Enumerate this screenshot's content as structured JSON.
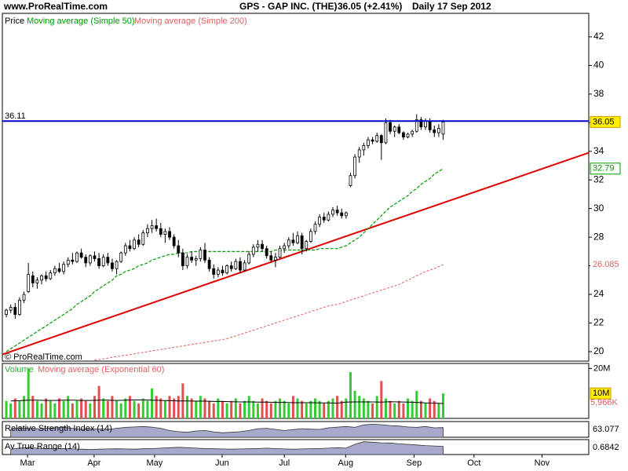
{
  "chart_data": {
    "type": "candlestick",
    "site": "www.ProRealTime.com",
    "symbol": "GPS - GAP INC. (THE)",
    "quote": "36.05 (+2.41%)",
    "period": "Daily 17 Sep 2012",
    "copyright": "© ProRealTime.com",
    "price_label": "Price",
    "xlim": [
      -0.9,
      132
    ],
    "xticks": [
      {
        "value": 4.8,
        "label": "Mar"
      },
      {
        "value": 19.9,
        "label": "Apr"
      },
      {
        "value": 33.6,
        "label": "May"
      },
      {
        "value": 48.9,
        "label": "Jun"
      },
      {
        "value": 63,
        "label": "Jul"
      },
      {
        "value": 76.9,
        "label": "Aug"
      },
      {
        "value": 92.4,
        "label": "Sep"
      },
      {
        "value": 106,
        "label": "Oct"
      },
      {
        "value": 121.4,
        "label": "Nov"
      }
    ],
    "ylim": [
      19.34,
      43.64
    ],
    "yticks": [
      20,
      22,
      24,
      26,
      28,
      30,
      32,
      34,
      36,
      38,
      40,
      42
    ],
    "hline": 36.11,
    "hline_color": "#0000cc",
    "trendline": [
      19.8,
      33.9
    ],
    "trendline_color": "#e00000",
    "ohlc": [
      [
        22.6,
        23.0,
        22.4,
        22.9
      ],
      [
        22.9,
        23.3,
        22.7,
        23.1
      ],
      [
        23.1,
        23.4,
        22.3,
        22.6
      ],
      [
        22.6,
        23.8,
        22.5,
        23.6
      ],
      [
        23.6,
        24.2,
        23.4,
        24.0
      ],
      [
        24.2,
        26.2,
        24.1,
        25.4
      ],
      [
        25.3,
        25.6,
        24.5,
        24.8
      ],
      [
        24.8,
        25.2,
        24.4,
        25.0
      ],
      [
        25.0,
        25.4,
        24.7,
        25.3
      ],
      [
        25.3,
        25.6,
        24.9,
        25.1
      ],
      [
        25.1,
        25.7,
        25.0,
        25.5
      ],
      [
        25.5,
        26.0,
        25.3,
        25.8
      ],
      [
        25.8,
        26.2,
        25.5,
        25.6
      ],
      [
        25.6,
        26.3,
        25.4,
        26.1
      ],
      [
        26.1,
        26.6,
        25.9,
        26.4
      ],
      [
        26.4,
        26.9,
        26.1,
        26.3
      ],
      [
        26.3,
        27.0,
        26.2,
        26.9
      ],
      [
        26.9,
        27.2,
        26.5,
        26.6
      ],
      [
        26.6,
        26.8,
        25.9,
        26.2
      ],
      [
        26.2,
        26.8,
        26.0,
        26.7
      ],
      [
        26.7,
        27.0,
        26.3,
        26.5
      ],
      [
        26.5,
        26.9,
        25.8,
        26.0
      ],
      [
        26.0,
        26.8,
        25.9,
        26.6
      ],
      [
        26.6,
        26.9,
        26.0,
        26.2
      ],
      [
        26.2,
        26.5,
        25.6,
        25.8
      ],
      [
        25.8,
        26.4,
        25.4,
        26.3
      ],
      [
        26.3,
        27.0,
        26.2,
        26.9
      ],
      [
        26.9,
        27.6,
        26.7,
        27.4
      ],
      [
        27.4,
        27.8,
        27.0,
        27.2
      ],
      [
        27.2,
        28.0,
        27.1,
        27.8
      ],
      [
        27.8,
        28.2,
        27.3,
        27.5
      ],
      [
        27.5,
        28.5,
        27.4,
        28.3
      ],
      [
        28.3,
        28.9,
        28.0,
        28.6
      ],
      [
        28.6,
        29.2,
        28.3,
        28.8
      ],
      [
        28.8,
        29.3,
        28.4,
        28.6
      ],
      [
        28.6,
        29.0,
        28.0,
        28.2
      ],
      [
        28.2,
        28.6,
        27.6,
        28.4
      ],
      [
        28.4,
        28.7,
        27.8,
        28.0
      ],
      [
        28.0,
        28.2,
        27.2,
        27.4
      ],
      [
        27.4,
        27.8,
        26.6,
        26.9
      ],
      [
        26.9,
        27.2,
        25.7,
        26.0
      ],
      [
        26.0,
        26.8,
        25.8,
        26.6
      ],
      [
        26.6,
        27.0,
        26.2,
        26.4
      ],
      [
        26.4,
        26.7,
        26.0,
        26.5
      ],
      [
        26.5,
        27.3,
        26.3,
        27.1
      ],
      [
        27.1,
        27.6,
        26.2,
        26.4
      ],
      [
        26.4,
        26.6,
        25.6,
        25.8
      ],
      [
        25.8,
        26.1,
        25.1,
        25.4
      ],
      [
        25.4,
        25.9,
        25.2,
        25.7
      ],
      [
        25.7,
        26.0,
        25.3,
        25.5
      ],
      [
        25.5,
        26.1,
        25.4,
        26.0
      ],
      [
        26.0,
        26.3,
        25.6,
        25.8
      ],
      [
        25.8,
        26.5,
        25.7,
        26.3
      ],
      [
        26.3,
        26.6,
        25.5,
        25.7
      ],
      [
        25.7,
        26.4,
        25.6,
        26.2
      ],
      [
        26.2,
        27.0,
        26.1,
        26.8
      ],
      [
        26.8,
        27.5,
        26.6,
        27.3
      ],
      [
        27.3,
        27.8,
        27.0,
        27.5
      ],
      [
        27.5,
        27.8,
        27.0,
        27.2
      ],
      [
        27.2,
        27.4,
        26.5,
        26.7
      ],
      [
        26.7,
        27.0,
        26.2,
        26.4
      ],
      [
        26.4,
        26.9,
        25.9,
        26.6
      ],
      [
        26.6,
        27.4,
        26.5,
        27.2
      ],
      [
        27.2,
        27.6,
        26.9,
        27.4
      ],
      [
        27.4,
        28.0,
        27.2,
        27.8
      ],
      [
        27.8,
        28.3,
        27.4,
        27.6
      ],
      [
        27.6,
        28.4,
        27.5,
        28.1
      ],
      [
        28.1,
        28.3,
        26.8,
        27.2
      ],
      [
        27.2,
        27.8,
        27.0,
        27.7
      ],
      [
        27.7,
        28.6,
        27.6,
        28.4
      ],
      [
        28.4,
        29.1,
        28.2,
        28.9
      ],
      [
        28.9,
        29.6,
        28.7,
        29.4
      ],
      [
        29.4,
        29.7,
        29.0,
        29.2
      ],
      [
        29.2,
        29.8,
        29.1,
        29.6
      ],
      [
        29.6,
        30.1,
        29.4,
        29.9
      ],
      [
        29.9,
        30.2,
        29.5,
        29.7
      ],
      [
        29.7,
        30.0,
        29.3,
        29.5
      ],
      [
        29.5,
        29.8,
        29.3,
        29.7
      ],
      [
        31.6,
        32.5,
        31.5,
        32.3
      ],
      [
        32.3,
        33.8,
        32.1,
        33.6
      ],
      [
        33.6,
        34.3,
        33.2,
        34.1
      ],
      [
        34.1,
        34.6,
        33.7,
        34.4
      ],
      [
        34.4,
        35.0,
        34.2,
        34.8
      ],
      [
        34.8,
        35.0,
        34.5,
        34.7
      ],
      [
        34.7,
        35.3,
        34.6,
        35.1
      ],
      [
        35.1,
        35.2,
        33.4,
        34.6
      ],
      [
        34.6,
        36.3,
        34.5,
        36.0
      ],
      [
        36.0,
        36.2,
        35.2,
        35.4
      ],
      [
        35.4,
        35.8,
        35.0,
        35.7
      ],
      [
        35.7,
        35.9,
        35.2,
        35.3
      ],
      [
        35.3,
        35.4,
        34.8,
        35.0
      ],
      [
        35.0,
        35.3,
        34.9,
        35.2
      ],
      [
        35.2,
        35.5,
        35.0,
        35.4
      ],
      [
        35.4,
        36.6,
        35.3,
        36.2
      ],
      [
        36.2,
        36.4,
        35.5,
        35.7
      ],
      [
        35.7,
        36.3,
        35.5,
        36.1
      ],
      [
        36.1,
        36.3,
        35.3,
        35.5
      ],
      [
        35.5,
        35.8,
        35.0,
        35.3
      ],
      [
        35.3,
        35.9,
        35.0,
        35.6
      ],
      [
        35.2,
        36.2,
        34.8,
        36.05
      ]
    ],
    "ma50": {
      "name": "Moving average (Simple 50)",
      "color": "#009900",
      "values": [
        20.0,
        20.2,
        20.4,
        20.6,
        20.8,
        21.0,
        21.2,
        21.4,
        21.6,
        21.8,
        22.0,
        22.2,
        22.4,
        22.6,
        22.8,
        23.0,
        23.3,
        23.5,
        23.7,
        23.9,
        24.2,
        24.4,
        24.6,
        24.8,
        25.0,
        25.3,
        25.4,
        25.6,
        25.7,
        25.8,
        26.0,
        26.1,
        26.2,
        26.4,
        26.5,
        26.6,
        26.7,
        26.8,
        26.8,
        26.9,
        26.9,
        26.9,
        27.0,
        27.0,
        27.0,
        27.0,
        27.0,
        27.0,
        27.0,
        27.0,
        27.0,
        27.0,
        27.0,
        27.0,
        27.0,
        27.0,
        27.0,
        27.0,
        27.0,
        27.0,
        27.0,
        27.1,
        27.1,
        27.1,
        27.1,
        27.1,
        27.1,
        27.1,
        27.1,
        27.1,
        27.1,
        27.2,
        27.2,
        27.2,
        27.2,
        27.2,
        27.3,
        27.4,
        27.6,
        27.8,
        28.0,
        28.3,
        28.6,
        28.9,
        29.2,
        29.5,
        29.8,
        30.1,
        30.3,
        30.5,
        30.7,
        30.9,
        31.2,
        31.4,
        31.7,
        31.9,
        32.1,
        32.4,
        32.6,
        32.79
      ]
    },
    "ma200": {
      "name": "Moving average (Simple 200)",
      "color": "#e06060",
      "values": [
        null,
        null,
        null,
        null,
        null,
        null,
        null,
        null,
        null,
        null,
        null,
        null,
        null,
        null,
        null,
        null,
        null,
        null,
        null,
        null,
        19.4,
        19.45,
        19.5,
        19.55,
        19.6,
        19.65,
        19.7,
        19.75,
        19.8,
        19.85,
        19.9,
        19.95,
        20.0,
        20.05,
        20.1,
        20.15,
        20.2,
        20.25,
        20.3,
        20.35,
        20.4,
        20.45,
        20.5,
        20.55,
        20.6,
        20.65,
        20.7,
        20.75,
        20.8,
        20.85,
        20.9,
        21.0,
        21.1,
        21.2,
        21.3,
        21.4,
        21.5,
        21.6,
        21.7,
        21.8,
        21.9,
        22.0,
        22.1,
        22.2,
        22.3,
        22.4,
        22.5,
        22.6,
        22.7,
        22.8,
        22.9,
        23.0,
        23.1,
        23.2,
        23.25,
        23.3,
        23.4,
        23.5,
        23.6,
        23.7,
        23.8,
        23.9,
        24.0,
        24.1,
        24.2,
        24.3,
        24.4,
        24.5,
        24.6,
        24.7,
        24.85,
        25.0,
        25.15,
        25.3,
        25.45,
        25.6,
        25.7,
        25.8,
        25.95,
        26.085
      ]
    },
    "volume": {
      "name": "Volume",
      "up_color": "#33cc33",
      "down_color": "#e05050",
      "ylim": [
        0,
        22
      ],
      "yticks": [
        {
          "value": 20,
          "label": "20M"
        }
      ],
      "badge": {
        "value": 10,
        "label": "10M"
      },
      "values": [
        7,
        6,
        8,
        7,
        9,
        20,
        9,
        7,
        6,
        8,
        7,
        6,
        8,
        7,
        9,
        6,
        7,
        8,
        7,
        6,
        9,
        13,
        8,
        7,
        9,
        7,
        6,
        8,
        9,
        7,
        6,
        8,
        7,
        12,
        9,
        8,
        7,
        9,
        8,
        9,
        14,
        9,
        8,
        7,
        9,
        8,
        7,
        6,
        8,
        7,
        6,
        7,
        8,
        6,
        7,
        9,
        7,
        6,
        8,
        7,
        6,
        7,
        8,
        7,
        6,
        9,
        8,
        7,
        6,
        7,
        8,
        7,
        6,
        7,
        8,
        9,
        7,
        8,
        18.5,
        11,
        9,
        8,
        7,
        6,
        9,
        15,
        8,
        7,
        6,
        7,
        6,
        8,
        7,
        11,
        7,
        6,
        8,
        7,
        6,
        10
      ]
    },
    "ema60": {
      "name": "Moving average (Exponential 60)",
      "color": "#e06060",
      "badge": {
        "value": 5.966,
        "label": "5,966K"
      },
      "values": [
        7.0,
        7.1,
        7.3,
        7.3,
        7.2,
        7.2,
        7.3,
        7.3,
        7.2,
        7.2,
        7.3,
        7.3,
        7.2,
        7.3,
        7.4,
        7.4,
        7.3,
        7.2,
        7.1,
        7.0,
        7.0,
        6.9,
        6.9,
        6.8,
        6.8,
        6.7,
        6.6,
        6.6,
        6.5,
        6.5,
        6.4,
        6.4,
        6.3,
        6.3,
        6.3,
        6.2,
        6.2,
        6.1,
        6.5,
        6.6,
        6.6,
        6.6,
        6.5,
        6.7,
        6.6,
        6.5,
        6.4,
        6.2,
        6.1,
        5.966
      ]
    },
    "rsi": {
      "name": "Relative Strength Index (14)",
      "ylim": [
        20,
        90
      ],
      "values": [
        55,
        62,
        60,
        58,
        60,
        62,
        64,
        60,
        55,
        58,
        57,
        55,
        60,
        64,
        66,
        68,
        65,
        60,
        50,
        45,
        42,
        48,
        50,
        44,
        40,
        42,
        45,
        50,
        58,
        60,
        55,
        50,
        54,
        58,
        56,
        55,
        62,
        65,
        68,
        64,
        75,
        78,
        76,
        72,
        70,
        66,
        64,
        68,
        62,
        63.077
      ]
    },
    "atr": {
      "name": "Av True Range (14)",
      "ylim": [
        0.3,
        1.0
      ],
      "values": [
        0.55,
        0.6,
        0.62,
        0.6,
        0.58,
        0.57,
        0.58,
        0.56,
        0.55,
        0.54,
        0.55,
        0.56,
        0.57,
        0.56,
        0.55,
        0.57,
        0.58,
        0.6,
        0.62,
        0.64,
        0.62,
        0.6,
        0.58,
        0.57,
        0.56,
        0.55,
        0.56,
        0.57,
        0.58,
        0.6,
        0.58,
        0.56,
        0.55,
        0.56,
        0.57,
        0.58,
        0.6,
        0.62,
        0.6,
        0.78,
        0.9,
        0.88,
        0.85,
        0.84,
        0.8,
        0.78,
        0.75,
        0.72,
        0.7,
        0.6842
      ]
    }
  }
}
